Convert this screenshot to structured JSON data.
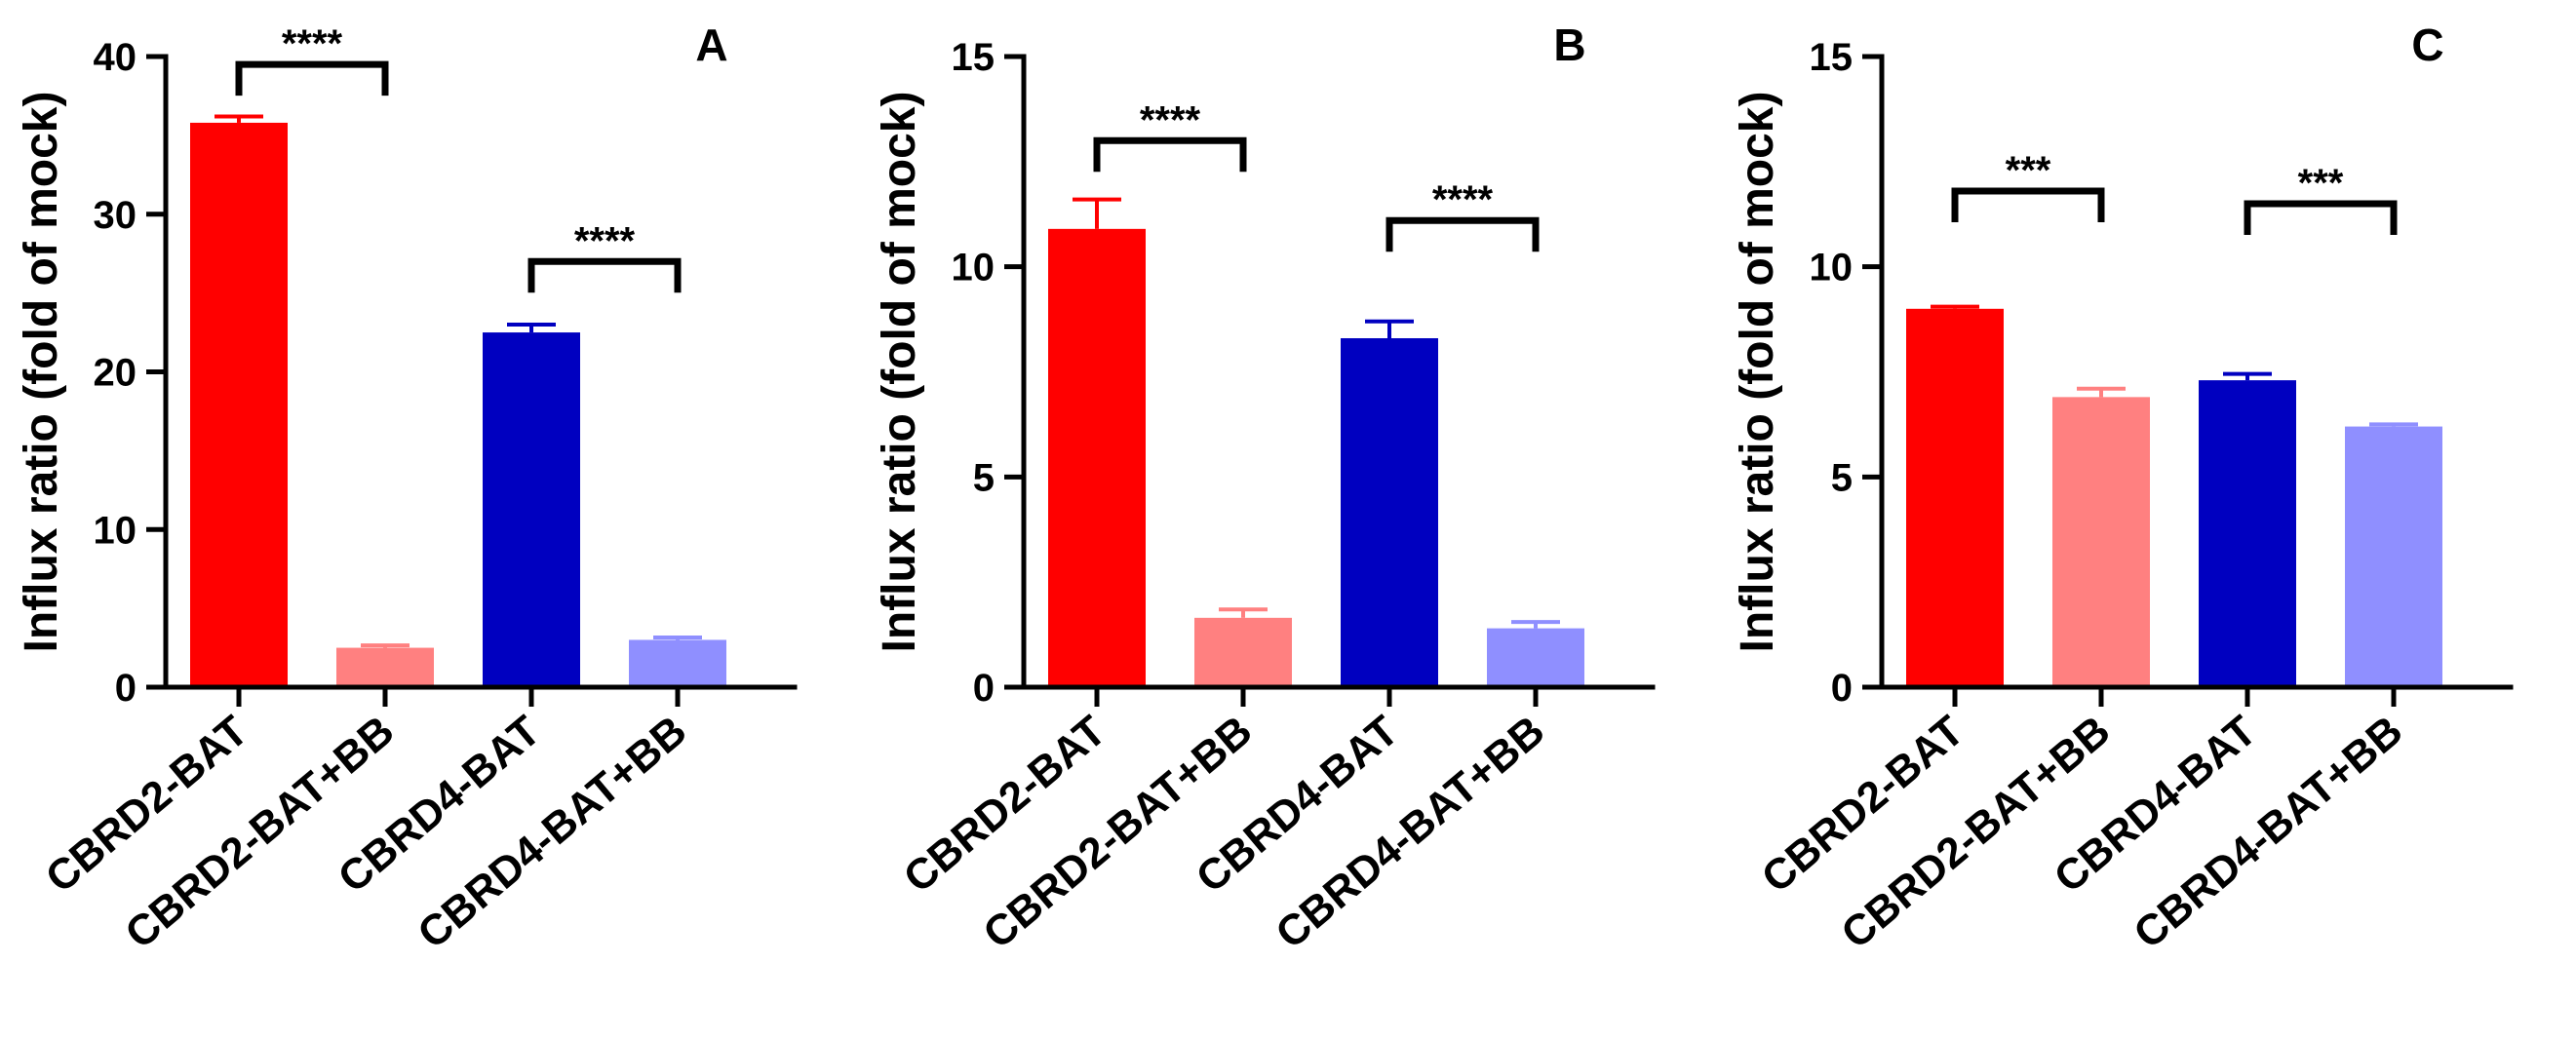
{
  "chart_data": [
    {
      "type": "bar",
      "panel": "A",
      "ylabel": "Influx ratio (fold of mock)",
      "xlabel": "",
      "ylim": [
        0,
        40
      ],
      "yticks": [
        0,
        10,
        20,
        30,
        40
      ],
      "categories": [
        "CBRD2-BAT",
        "CBRD2-BAT+BB",
        "CBRD4-BAT",
        "CBRD4-BAT+BB"
      ],
      "values": [
        35.8,
        2.5,
        22.5,
        3.0
      ],
      "errors": [
        0.4,
        0.15,
        0.5,
        0.15
      ],
      "colors": [
        "#ff0000",
        "#ff8080",
        "#0000c0",
        "#8f8fff"
      ],
      "significance": [
        {
          "from": 0,
          "to": 1,
          "y": 39.5,
          "label": "****"
        },
        {
          "from": 2,
          "to": 3,
          "y": 27.0,
          "label": "****"
        }
      ]
    },
    {
      "type": "bar",
      "panel": "B",
      "ylabel": "Influx ratio (fold of mock)",
      "xlabel": "",
      "ylim": [
        0,
        15
      ],
      "yticks": [
        0,
        5,
        10,
        15
      ],
      "categories": [
        "CBRD2-BAT",
        "CBRD2-BAT+BB",
        "CBRD4-BAT",
        "CBRD4-BAT+BB"
      ],
      "values": [
        10.9,
        1.65,
        8.3,
        1.4
      ],
      "errors": [
        0.7,
        0.2,
        0.4,
        0.15
      ],
      "colors": [
        "#ff0000",
        "#ff8080",
        "#0000c0",
        "#8f8fff"
      ],
      "significance": [
        {
          "from": 0,
          "to": 1,
          "y": 13.0,
          "label": "****"
        },
        {
          "from": 2,
          "to": 3,
          "y": 11.1,
          "label": "****"
        }
      ]
    },
    {
      "type": "bar",
      "panel": "C",
      "ylabel": "Influx ratio (fold of mock)",
      "xlabel": "",
      "ylim": [
        0,
        15
      ],
      "yticks": [
        0,
        5,
        10,
        15
      ],
      "categories": [
        "CBRD2-BAT",
        "CBRD2-BAT+BB",
        "CBRD4-BAT",
        "CBRD4-BAT+BB"
      ],
      "values": [
        9.0,
        6.9,
        7.3,
        6.2
      ],
      "errors": [
        0.05,
        0.2,
        0.15,
        0.05
      ],
      "colors": [
        "#ff0000",
        "#ff8080",
        "#0000c0",
        "#8f8fff"
      ],
      "significance": [
        {
          "from": 0,
          "to": 1,
          "y": 11.8,
          "label": "***"
        },
        {
          "from": 2,
          "to": 3,
          "y": 11.5,
          "label": "***"
        }
      ]
    }
  ]
}
